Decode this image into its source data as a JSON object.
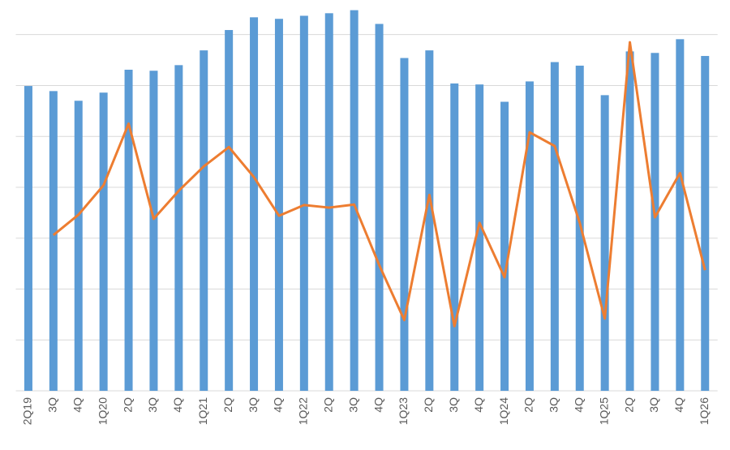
{
  "chart_data": {
    "type": "bar-line",
    "categories": [
      "2Q19",
      "3Q",
      "4Q",
      "1Q20",
      "2Q",
      "3Q",
      "4Q",
      "1Q21",
      "2Q",
      "3Q",
      "4Q",
      "1Q22",
      "2Q",
      "3Q",
      "4Q",
      "1Q23",
      "2Q",
      "3Q",
      "4Q",
      "1Q24",
      "2Q",
      "3Q",
      "4Q",
      "1Q25",
      "2Q",
      "3Q",
      "4Q",
      "1Q26"
    ],
    "series": [
      {
        "type": "bar",
        "color": "#5b9bd5",
        "values": [
          5.99,
          5.89,
          5.7,
          5.86,
          6.31,
          6.29,
          6.4,
          6.69,
          7.09,
          7.34,
          7.31,
          7.37,
          7.42,
          7.48,
          7.21,
          6.54,
          6.69,
          6.04,
          6.02,
          5.68,
          6.08,
          6.46,
          6.39,
          5.81,
          6.67,
          6.64,
          6.91,
          6.58
        ]
      },
      {
        "type": "line",
        "color": "#ed7d31",
        "values": [
          null,
          3.06,
          3.46,
          4.04,
          5.25,
          3.38,
          3.93,
          4.41,
          4.79,
          4.2,
          3.44,
          3.65,
          3.6,
          3.66,
          2.47,
          1.39,
          3.85,
          1.27,
          3.3,
          2.23,
          5.08,
          4.81,
          3.3,
          1.42,
          6.85,
          3.41,
          4.28,
          2.37
        ]
      }
    ],
    "ylim": [
      0,
      7.68
    ],
    "yticks": [
      0,
      1,
      2,
      3,
      4,
      5,
      6,
      7
    ],
    "grid": true
  }
}
